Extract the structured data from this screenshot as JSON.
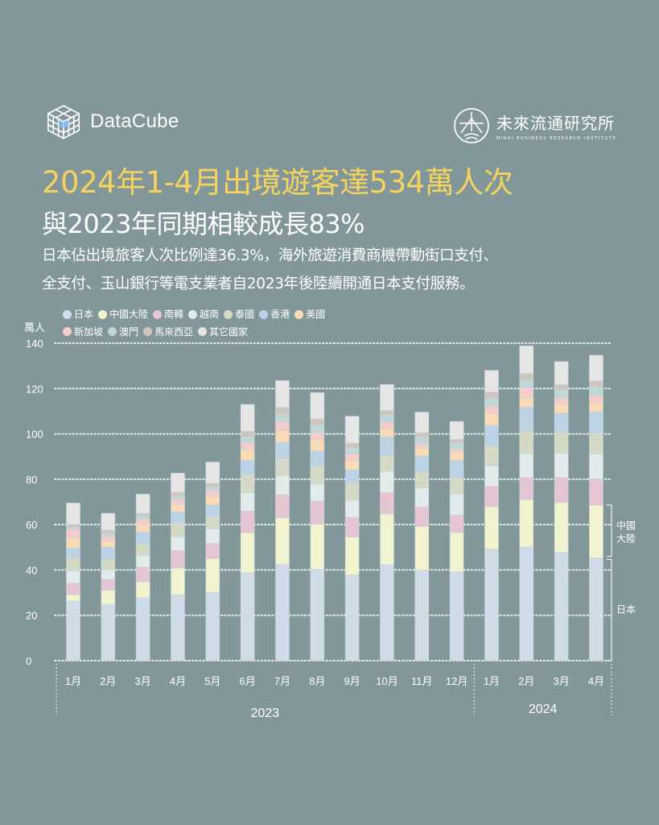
{
  "header": {
    "brand_left": "DataCube",
    "brand_right": "未來流通研究所",
    "brand_right_sub": "MIRAI BUSINESS RESEARCH INSTITUTE",
    "title": "2024年1-4月出境遊客達534萬人次",
    "subtitle": "與2023年同期相較成長83%",
    "description_line1": "日本佔出境旅客人次比例達36.3%，海外旅遊消費商機帶動街口支付、",
    "description_line2": "全支付、玉山銀行等電支業者自2023年後陸續開通日本支付服務。"
  },
  "colors": {
    "background": "#82979a",
    "title": "#f5d35e",
    "logo_accent": "#7fb6f0"
  },
  "chart_data": {
    "type": "bar",
    "stacked": true,
    "ylabel": "萬人",
    "ylim": [
      0,
      140
    ],
    "yticks": [
      0,
      20,
      40,
      60,
      80,
      100,
      120,
      140
    ],
    "grid": true,
    "legend_placement": "top-left",
    "categories": [
      "1月",
      "2月",
      "3月",
      "4月",
      "5月",
      "6月",
      "7月",
      "8月",
      "9月",
      "10月",
      "11月",
      "12月",
      "1月",
      "2月",
      "3月",
      "4月"
    ],
    "year_groups": [
      {
        "label": "2023",
        "count": 12
      },
      {
        "label": "2024",
        "count": 4
      }
    ],
    "annotations": [
      {
        "label": "中國大陸",
        "series": "中國大陸"
      },
      {
        "label": "日本",
        "series": "日本"
      }
    ],
    "series": [
      {
        "name": "日本",
        "color": "#d0dde9",
        "values": [
          26.3,
          24.9,
          27.8,
          29.0,
          30.2,
          38.7,
          42.4,
          40.2,
          37.8,
          42.3,
          39.9,
          39.2,
          49.2,
          50.1,
          47.8,
          45.3
        ]
      },
      {
        "name": "中國大陸",
        "color": "#f2f3cf",
        "values": [
          2.7,
          6.1,
          7.0,
          11.8,
          14.8,
          17.7,
          20.6,
          20.0,
          16.7,
          22.4,
          19.3,
          17.3,
          18.6,
          20.9,
          21.9,
          23.3
        ]
      },
      {
        "name": "南韓",
        "color": "#e5c5d3",
        "values": [
          5.2,
          4.9,
          6.5,
          7.7,
          6.7,
          9.6,
          10.1,
          10.1,
          8.8,
          9.5,
          8.6,
          7.8,
          9.1,
          9.8,
          11.1,
          11.5
        ]
      },
      {
        "name": "越南",
        "color": "#e3ecec",
        "values": [
          5.4,
          4.2,
          5.1,
          6.2,
          6.4,
          8.0,
          8.5,
          7.7,
          7.4,
          9.3,
          8.4,
          9.3,
          9.1,
          10.3,
          10.6,
          11.1
        ]
      },
      {
        "name": "泰國",
        "color": "#d5dac6",
        "values": [
          5.7,
          4.4,
          5.1,
          5.9,
          5.5,
          8.0,
          7.6,
          7.7,
          7.3,
          7.1,
          7.0,
          7.0,
          8.6,
          10.0,
          9.2,
          9.3
        ]
      },
      {
        "name": "香港",
        "color": "#bcd2e5",
        "values": [
          4.4,
          5.6,
          5.2,
          5.1,
          5.0,
          6.4,
          7.1,
          6.8,
          6.2,
          8.0,
          7.1,
          7.7,
          9.2,
          10.7,
          8.5,
          9.2
        ]
      },
      {
        "name": "美國",
        "color": "#f9dcb5",
        "values": [
          4.5,
          2.7,
          3.4,
          3.3,
          3.9,
          4.7,
          5.2,
          4.8,
          4.2,
          3.4,
          3.5,
          3.4,
          5.1,
          4.3,
          3.9,
          4.0
        ]
      },
      {
        "name": "新加坡",
        "color": "#f5cccc",
        "values": [
          3.6,
          2.2,
          2.1,
          2.2,
          2.6,
          3.0,
          3.8,
          3.3,
          2.7,
          3.1,
          1.8,
          1.5,
          3.4,
          4.3,
          2.9,
          3.2
        ]
      },
      {
        "name": "澳門",
        "color": "#bfd8d6",
        "values": [
          0.7,
          1.3,
          1.5,
          1.5,
          1.5,
          2.5,
          3.5,
          3.2,
          2.6,
          3.0,
          3.0,
          3.1,
          3.6,
          3.5,
          3.4,
          4.0
        ]
      },
      {
        "name": "馬來西亞",
        "color": "#cec5bd",
        "values": [
          1.6,
          1.3,
          1.3,
          1.6,
          1.7,
          2.6,
          2.9,
          2.8,
          2.3,
          2.3,
          2.0,
          1.3,
          2.6,
          2.8,
          2.5,
          2.5
        ]
      },
      {
        "name": "其它國家",
        "color": "#e6e6e6",
        "values": [
          9.4,
          7.4,
          8.4,
          8.4,
          9.3,
          11.8,
          11.8,
          11.6,
          11.8,
          11.4,
          9.0,
          7.9,
          9.5,
          12.1,
          10.1,
          11.3
        ]
      }
    ]
  }
}
